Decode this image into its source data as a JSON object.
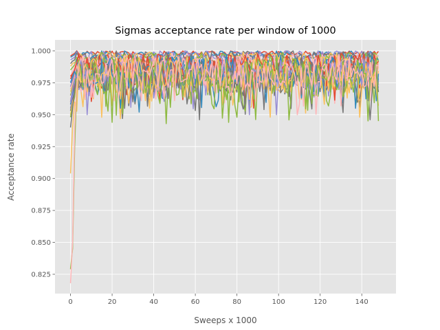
{
  "chart_data": {
    "type": "line",
    "title": "Sigmas acceptance rate per window of 1000",
    "xlabel": "Sweeps x 1000",
    "ylabel": "Acceptance rate",
    "xlim": [
      -7.45,
      156.45
    ],
    "ylim": [
      0.8099,
      1.0086
    ],
    "x_range": [
      0,
      148
    ],
    "xticks": [
      0,
      20,
      40,
      60,
      80,
      100,
      120,
      140
    ],
    "yticks": [
      0.825,
      0.85,
      0.875,
      0.9,
      0.925,
      0.95,
      0.975,
      1.0
    ],
    "xtick_labels": [
      "0",
      "20",
      "40",
      "60",
      "80",
      "100",
      "120",
      "140"
    ],
    "ytick_labels": [
      "0.825",
      "0.850",
      "0.875",
      "0.900",
      "0.925",
      "0.950",
      "0.975",
      "1.000"
    ],
    "grid": true,
    "style": "ggplot",
    "colors": [
      "#E24A33",
      "#348ABD",
      "#988ED5",
      "#777777",
      "#FBC15E",
      "#8EBA42",
      "#FFB5B8"
    ],
    "series": [
      {
        "start": [
          0.996,
          0.997,
          0.998
        ],
        "lo": 0.994,
        "hi": 1.0,
        "seed": 11
      },
      {
        "start": [
          0.995,
          0.996,
          0.997
        ],
        "lo": 0.99,
        "hi": 1.0,
        "seed": 12
      },
      {
        "start": [
          0.993,
          0.994,
          0.995
        ],
        "lo": 0.988,
        "hi": 1.0,
        "seed": 13
      },
      {
        "start": [
          0.99,
          0.992,
          0.993
        ],
        "lo": 0.985,
        "hi": 1.0,
        "seed": 14
      },
      {
        "start": [
          0.988,
          0.99,
          0.991
        ],
        "lo": 0.982,
        "hi": 0.999,
        "seed": 15
      },
      {
        "start": [
          0.985,
          0.987,
          0.989
        ],
        "lo": 0.978,
        "hi": 0.999,
        "seed": 16
      },
      {
        "start": [
          0.98,
          0.984,
          0.987
        ],
        "lo": 0.975,
        "hi": 0.998,
        "seed": 17
      },
      {
        "start": [
          0.978,
          0.982,
          0.985
        ],
        "lo": 0.972,
        "hi": 0.998,
        "seed": 18
      },
      {
        "start": [
          0.975,
          0.98,
          0.984
        ],
        "lo": 0.97,
        "hi": 0.997,
        "seed": 19
      },
      {
        "start": [
          0.972,
          0.978,
          0.982
        ],
        "lo": 0.967,
        "hi": 0.997,
        "seed": 20
      },
      {
        "start": [
          0.97,
          0.976,
          0.981
        ],
        "lo": 0.965,
        "hi": 0.996,
        "seed": 21
      },
      {
        "start": [
          0.968,
          0.974,
          0.979
        ],
        "lo": 0.962,
        "hi": 0.996,
        "seed": 22
      },
      {
        "start": [
          0.965,
          0.972,
          0.978
        ],
        "lo": 0.96,
        "hi": 0.995,
        "seed": 23
      },
      {
        "start": [
          0.962,
          0.97,
          0.976
        ],
        "lo": 0.957,
        "hi": 0.995,
        "seed": 24
      },
      {
        "start": [
          0.96,
          0.968,
          0.974
        ],
        "lo": 0.955,
        "hi": 0.994,
        "seed": 25
      },
      {
        "start": [
          0.958,
          0.966,
          0.972
        ],
        "lo": 0.952,
        "hi": 0.994,
        "seed": 26
      },
      {
        "start": [
          0.955,
          0.964,
          0.97
        ],
        "lo": 0.95,
        "hi": 0.993,
        "seed": 27
      },
      {
        "start": [
          0.953,
          0.962,
          0.968
        ],
        "lo": 0.947,
        "hi": 0.993,
        "seed": 28
      },
      {
        "start": [
          0.95,
          0.96,
          0.966
        ],
        "lo": 0.945,
        "hi": 0.992,
        "seed": 29
      },
      {
        "start": [
          0.948,
          0.957,
          0.964
        ],
        "lo": 0.943,
        "hi": 0.992,
        "seed": 30
      },
      {
        "start": [
          0.97,
          0.975,
          0.98
        ],
        "lo": 0.96,
        "hi": 0.997,
        "seed": 31
      },
      {
        "start": [
          0.98,
          0.982,
          0.985
        ],
        "lo": 0.968,
        "hi": 0.998,
        "seed": 32
      },
      {
        "start": [
          0.975,
          0.98,
          0.984
        ],
        "lo": 0.955,
        "hi": 0.996,
        "seed": 33
      },
      {
        "start": [
          0.96,
          0.97,
          0.978
        ],
        "lo": 0.95,
        "hi": 0.995,
        "seed": 34
      },
      {
        "start": [
          0.94,
          0.955,
          0.97
        ],
        "lo": 0.946,
        "hi": 0.993,
        "seed": 35
      },
      {
        "start": [
          0.904,
          0.94,
          0.96
        ],
        "lo": 0.948,
        "hi": 0.995,
        "seed": 36
      },
      {
        "start": [
          0.829,
          0.845,
          0.925
        ],
        "lo": 0.944,
        "hi": 0.994,
        "seed": 37
      },
      {
        "start": [
          0.818,
          0.85,
          0.94
        ],
        "lo": 0.95,
        "hi": 0.996,
        "seed": 38
      }
    ]
  }
}
